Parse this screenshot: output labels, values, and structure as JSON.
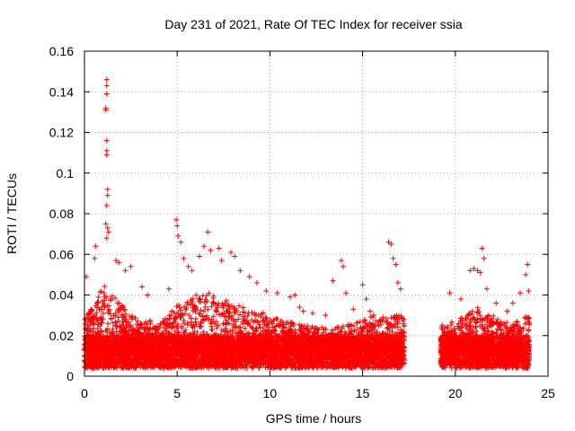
{
  "chart_data": {
    "type": "scatter",
    "title": "Day 231 of 2021, Rate Of TEC Index for receiver ssia",
    "xlabel": "GPS time / hours",
    "ylabel": "ROTI / TECUs",
    "xlim": [
      0,
      25
    ],
    "ylim": [
      0,
      0.16
    ],
    "x_ticks": [
      0,
      5,
      10,
      15,
      20,
      25
    ],
    "x_tick_labels": [
      "0",
      "5",
      "10",
      "15",
      "20",
      "25"
    ],
    "y_ticks": [
      0,
      0.02,
      0.04,
      0.06,
      0.08,
      0.1,
      0.12,
      0.14,
      0.16
    ],
    "y_tick_labels": [
      "0",
      "0.02",
      "0.04",
      "0.06",
      "0.08",
      "0.1",
      "0.12",
      "0.14",
      "0.16"
    ],
    "grid": true,
    "marker": "+",
    "marker_color": "#ff0000",
    "data_coverage_hours": [
      [
        0,
        17.25
      ],
      [
        19.2,
        24.0
      ]
    ],
    "typical_envelope": {
      "hours": [
        0,
        0.5,
        1,
        1.5,
        2,
        2.5,
        3,
        3.5,
        4,
        4.5,
        5,
        5.5,
        6,
        6.5,
        7,
        7.5,
        8,
        8.5,
        9,
        9.5,
        10,
        10.5,
        11,
        11.5,
        12,
        12.5,
        13,
        13.5,
        14,
        14.5,
        15,
        15.5,
        16,
        16.5,
        17,
        19.2,
        19.5,
        20,
        20.5,
        21,
        21.5,
        22,
        22.5,
        23,
        23.5,
        24
      ],
      "upper_roti": [
        0.03,
        0.035,
        0.045,
        0.04,
        0.035,
        0.03,
        0.028,
        0.028,
        0.025,
        0.03,
        0.035,
        0.038,
        0.04,
        0.042,
        0.04,
        0.038,
        0.036,
        0.034,
        0.034,
        0.032,
        0.03,
        0.028,
        0.027,
        0.026,
        0.025,
        0.024,
        0.024,
        0.024,
        0.025,
        0.026,
        0.028,
        0.03,
        0.028,
        0.03,
        0.03,
        0.025,
        0.026,
        0.028,
        0.03,
        0.033,
        0.035,
        0.03,
        0.028,
        0.026,
        0.028,
        0.03
      ],
      "baseline_roti": 0.012
    },
    "notable_points": [
      {
        "x": 1.2,
        "y": 0.146
      },
      {
        "x": 1.2,
        "y": 0.143
      },
      {
        "x": 1.2,
        "y": 0.139
      },
      {
        "x": 1.15,
        "y": 0.132
      },
      {
        "x": 1.15,
        "y": 0.131
      },
      {
        "x": 1.2,
        "y": 0.116
      },
      {
        "x": 1.2,
        "y": 0.111
      },
      {
        "x": 1.2,
        "y": 0.109
      },
      {
        "x": 1.25,
        "y": 0.092
      },
      {
        "x": 1.25,
        "y": 0.089
      },
      {
        "x": 1.2,
        "y": 0.084
      },
      {
        "x": 1.15,
        "y": 0.075
      },
      {
        "x": 1.25,
        "y": 0.073
      },
      {
        "x": 1.3,
        "y": 0.071
      },
      {
        "x": 1.2,
        "y": 0.068
      },
      {
        "x": 0.6,
        "y": 0.064
      },
      {
        "x": 0.55,
        "y": 0.058
      },
      {
        "x": 0.1,
        "y": 0.049
      },
      {
        "x": 1.7,
        "y": 0.057
      },
      {
        "x": 1.85,
        "y": 0.056
      },
      {
        "x": 2.2,
        "y": 0.052
      },
      {
        "x": 2.5,
        "y": 0.054
      },
      {
        "x": 3.1,
        "y": 0.044
      },
      {
        "x": 3.4,
        "y": 0.04
      },
      {
        "x": 4.55,
        "y": 0.043
      },
      {
        "x": 4.95,
        "y": 0.077
      },
      {
        "x": 5.0,
        "y": 0.074
      },
      {
        "x": 5.05,
        "y": 0.069
      },
      {
        "x": 5.2,
        "y": 0.066
      },
      {
        "x": 5.35,
        "y": 0.058
      },
      {
        "x": 5.6,
        "y": 0.054
      },
      {
        "x": 5.8,
        "y": 0.052
      },
      {
        "x": 6.2,
        "y": 0.059
      },
      {
        "x": 6.45,
        "y": 0.064
      },
      {
        "x": 6.65,
        "y": 0.071
      },
      {
        "x": 6.8,
        "y": 0.062
      },
      {
        "x": 7.25,
        "y": 0.063
      },
      {
        "x": 7.4,
        "y": 0.057
      },
      {
        "x": 7.9,
        "y": 0.061
      },
      {
        "x": 8.1,
        "y": 0.059
      },
      {
        "x": 8.4,
        "y": 0.052
      },
      {
        "x": 8.9,
        "y": 0.049
      },
      {
        "x": 9.3,
        "y": 0.046
      },
      {
        "x": 9.8,
        "y": 0.042
      },
      {
        "x": 10.4,
        "y": 0.041
      },
      {
        "x": 11.1,
        "y": 0.039
      },
      {
        "x": 11.35,
        "y": 0.04
      },
      {
        "x": 11.6,
        "y": 0.034
      },
      {
        "x": 11.8,
        "y": 0.032
      },
      {
        "x": 12.3,
        "y": 0.031
      },
      {
        "x": 13.0,
        "y": 0.03
      },
      {
        "x": 13.4,
        "y": 0.047
      },
      {
        "x": 13.85,
        "y": 0.057
      },
      {
        "x": 13.95,
        "y": 0.054
      },
      {
        "x": 14.1,
        "y": 0.041
      },
      {
        "x": 14.5,
        "y": 0.033
      },
      {
        "x": 15.0,
        "y": 0.045
      },
      {
        "x": 15.2,
        "y": 0.038
      },
      {
        "x": 15.4,
        "y": 0.032
      },
      {
        "x": 15.6,
        "y": 0.03
      },
      {
        "x": 16.1,
        "y": 0.029
      },
      {
        "x": 16.4,
        "y": 0.066
      },
      {
        "x": 16.55,
        "y": 0.065
      },
      {
        "x": 16.65,
        "y": 0.058
      },
      {
        "x": 16.8,
        "y": 0.055
      },
      {
        "x": 16.9,
        "y": 0.046
      },
      {
        "x": 17.05,
        "y": 0.043
      },
      {
        "x": 17.2,
        "y": 0.026
      },
      {
        "x": 19.7,
        "y": 0.041
      },
      {
        "x": 20.3,
        "y": 0.038
      },
      {
        "x": 20.8,
        "y": 0.052
      },
      {
        "x": 21.0,
        "y": 0.053
      },
      {
        "x": 21.2,
        "y": 0.052
      },
      {
        "x": 21.35,
        "y": 0.051
      },
      {
        "x": 21.45,
        "y": 0.063
      },
      {
        "x": 21.55,
        "y": 0.058
      },
      {
        "x": 21.7,
        "y": 0.043
      },
      {
        "x": 22.2,
        "y": 0.036
      },
      {
        "x": 22.8,
        "y": 0.032
      },
      {
        "x": 23.1,
        "y": 0.036
      },
      {
        "x": 23.5,
        "y": 0.041
      },
      {
        "x": 23.8,
        "y": 0.05
      },
      {
        "x": 23.9,
        "y": 0.055
      },
      {
        "x": 23.95,
        "y": 0.042
      }
    ]
  }
}
